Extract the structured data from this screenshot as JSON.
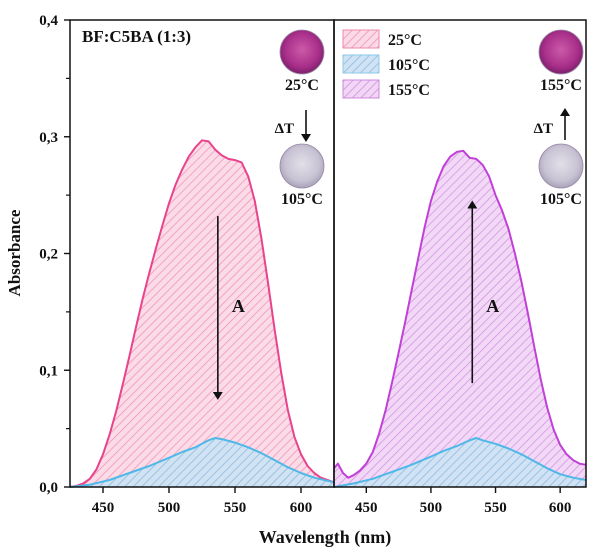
{
  "chart_data": {
    "type": "area",
    "title": "BF:C5BA (1:3)",
    "xlabel": "Wavelength (nm)",
    "ylabel": "Absorbance",
    "ylim": [
      0,
      0.4
    ],
    "y_ticks": [
      "0,0",
      "0,1",
      "0,2",
      "0,3",
      "0,4"
    ],
    "grid": false,
    "legend_position": "top-center",
    "panels": [
      {
        "id": "left",
        "xlim": [
          425,
          625
        ],
        "x_ticks": [
          "450",
          "500",
          "550",
          "600"
        ],
        "series": [
          {
            "name": "25°C",
            "color": "#e8438c",
            "x": [
              425,
              430,
              435,
              440,
              445,
              450,
              455,
              460,
              465,
              470,
              475,
              480,
              485,
              490,
              495,
              500,
              505,
              510,
              515,
              520,
              525,
              530,
              535,
              540,
              545,
              550,
              555,
              560,
              565,
              570,
              575,
              580,
              585,
              590,
              595,
              600,
              605,
              610,
              615,
              620,
              625
            ],
            "y": [
              0.0,
              0.001,
              0.003,
              0.007,
              0.015,
              0.028,
              0.045,
              0.065,
              0.088,
              0.112,
              0.137,
              0.161,
              0.183,
              0.204,
              0.224,
              0.243,
              0.259,
              0.272,
              0.283,
              0.291,
              0.297,
              0.296,
              0.289,
              0.284,
              0.281,
              0.28,
              0.278,
              0.266,
              0.245,
              0.213,
              0.175,
              0.135,
              0.098,
              0.066,
              0.043,
              0.028,
              0.018,
              0.012,
              0.008,
              0.006,
              0.004
            ]
          },
          {
            "name": "105°C",
            "color": "#4fb8e8",
            "x": [
              425,
              440,
              455,
              470,
              485,
              500,
              510,
              520,
              530,
              535,
              540,
              550,
              560,
              570,
              580,
              590,
              600,
              610,
              625
            ],
            "y": [
              0.0,
              0.002,
              0.006,
              0.012,
              0.018,
              0.025,
              0.03,
              0.034,
              0.04,
              0.042,
              0.041,
              0.038,
              0.034,
              0.029,
              0.023,
              0.017,
              0.012,
              0.008,
              0.004
            ]
          }
        ],
        "annotation": {
          "label": "A",
          "direction": "down",
          "x": 537,
          "y_from": 0.232,
          "y_to": 0.078
        },
        "swatches": [
          {
            "label": "25°C",
            "color": "#b02c8c"
          },
          {
            "label": "105°C",
            "color": "#c8c4d4"
          }
        ],
        "swatch_arrow_label": "ΔT",
        "swatch_arrow_direction": "down"
      },
      {
        "id": "right",
        "xlim": [
          425,
          620
        ],
        "x_ticks": [
          "450",
          "500",
          "550",
          "600"
        ],
        "series": [
          {
            "name": "155°C",
            "color": "#c040d8",
            "x": [
              425,
              428,
              432,
              436,
              440,
              445,
              450,
              455,
              460,
              465,
              470,
              475,
              480,
              485,
              490,
              495,
              500,
              505,
              510,
              515,
              520,
              525,
              530,
              535,
              540,
              545,
              550,
              555,
              560,
              565,
              570,
              575,
              580,
              585,
              590,
              595,
              600,
              605,
              610,
              615,
              620
            ],
            "y": [
              0.016,
              0.02,
              0.012,
              0.008,
              0.01,
              0.014,
              0.02,
              0.03,
              0.046,
              0.066,
              0.09,
              0.115,
              0.141,
              0.168,
              0.195,
              0.222,
              0.245,
              0.262,
              0.275,
              0.283,
              0.287,
              0.288,
              0.282,
              0.281,
              0.276,
              0.266,
              0.25,
              0.237,
              0.221,
              0.2,
              0.176,
              0.149,
              0.12,
              0.092,
              0.068,
              0.049,
              0.036,
              0.028,
              0.023,
              0.02,
              0.019
            ]
          },
          {
            "name": "105°C",
            "color": "#4fb8e8",
            "x": [
              425,
              440,
              455,
              470,
              485,
              500,
              510,
              520,
              530,
              535,
              540,
              550,
              560,
              570,
              580,
              590,
              600,
              610,
              620
            ],
            "y": [
              0.0,
              0.003,
              0.007,
              0.013,
              0.019,
              0.026,
              0.031,
              0.035,
              0.04,
              0.042,
              0.04,
              0.037,
              0.033,
              0.028,
              0.022,
              0.016,
              0.011,
              0.008,
              0.006
            ]
          }
        ],
        "annotation": {
          "label": "A",
          "direction": "up",
          "x": 532,
          "y_from": 0.089,
          "y_to": 0.242
        },
        "swatches": [
          {
            "label": "155°C",
            "color": "#b02c8c"
          },
          {
            "label": "105°C",
            "color": "#c8c4d4"
          }
        ],
        "swatch_arrow_label": "ΔT",
        "swatch_arrow_direction": "up"
      }
    ],
    "legend": [
      {
        "label": "25°C",
        "fill": "#f8c6d8",
        "hatch": "#ec88aa"
      },
      {
        "label": "105°C",
        "fill": "#cdeaf8",
        "hatch": "#8cc8ea"
      },
      {
        "label": "155°C",
        "fill": "#ecc4f2",
        "hatch": "#cc88de"
      }
    ]
  }
}
